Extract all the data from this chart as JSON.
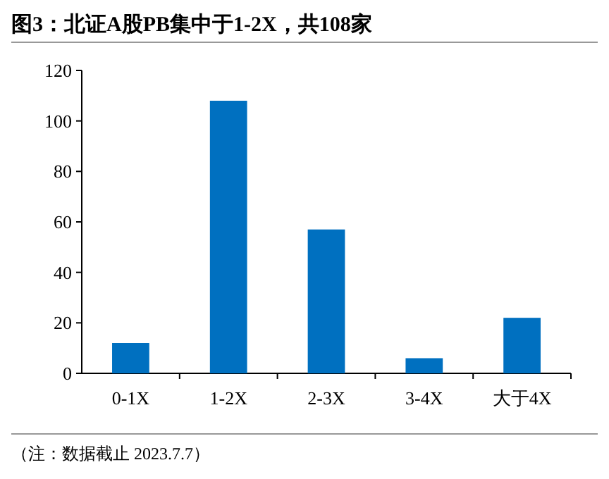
{
  "chart_data": {
    "type": "bar",
    "title": "图3：北证A股PB集中于1-2X，共108家",
    "categories": [
      "0-1X",
      "1-2X",
      "2-3X",
      "3-4X",
      "大于4X"
    ],
    "values": [
      12,
      108,
      57,
      6,
      22
    ],
    "color": "#0070c0",
    "ylim": [
      0,
      120
    ],
    "yticks": [
      0,
      20,
      40,
      60,
      80,
      100,
      120
    ],
    "grid": false,
    "annotations": [
      "（注：数据截止 2023.7.7）"
    ]
  }
}
